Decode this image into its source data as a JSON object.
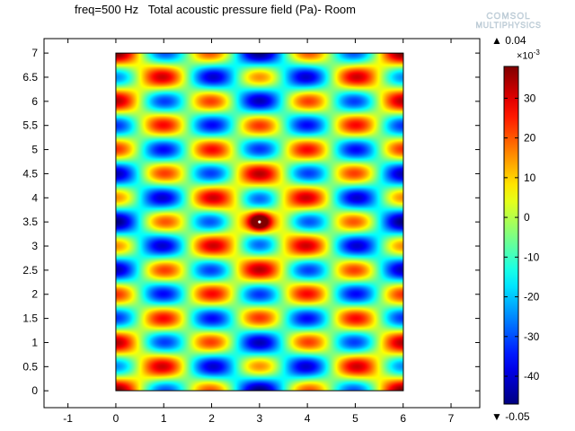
{
  "title": "freq=500 Hz   Total acoustic pressure field (Pa)- Room",
  "logo": {
    "line1": "COMSOL",
    "line2": "MULTIPHYSICS"
  },
  "colorbar": {
    "max_label": "▲ 0.04",
    "min_label": "▼ -0.05",
    "multiplier_base": "×10",
    "multiplier_exp": "-3",
    "ticks": [
      "30",
      "20",
      "10",
      "0",
      "-10",
      "-20",
      "-30",
      "-40"
    ],
    "tick_values": [
      30,
      20,
      10,
      0,
      -10,
      -20,
      -30,
      -40
    ],
    "range_milli": [
      -47,
      38
    ],
    "colormap": "jet"
  },
  "chart_data": {
    "type": "heatmap",
    "title": "freq=500 Hz   Total acoustic pressure field (Pa)- Room",
    "xlabel": "",
    "ylabel": "",
    "x_ticks": [
      "-1",
      "0",
      "1",
      "2",
      "3",
      "4",
      "5",
      "6",
      "7"
    ],
    "x_tick_values": [
      -1,
      0,
      1,
      2,
      3,
      4,
      5,
      6,
      7
    ],
    "y_ticks": [
      "0",
      "0.5",
      "1",
      "1.5",
      "2",
      "2.5",
      "3",
      "3.5",
      "4",
      "4.5",
      "5",
      "5.5",
      "6",
      "6.5",
      "7"
    ],
    "y_tick_values": [
      0,
      0.5,
      1,
      1.5,
      2,
      2.5,
      3,
      3.5,
      4,
      4.5,
      5,
      5.5,
      6,
      6.5,
      7
    ],
    "xlim": [
      -1.5,
      7.6
    ],
    "ylim": [
      -0.35,
      7.3
    ],
    "domain": {
      "x": [
        0,
        6
      ],
      "y": [
        0,
        7
      ]
    },
    "source_point": [
      3,
      3.5
    ],
    "value_range": [
      -0.047,
      0.038
    ],
    "grid": false
  }
}
